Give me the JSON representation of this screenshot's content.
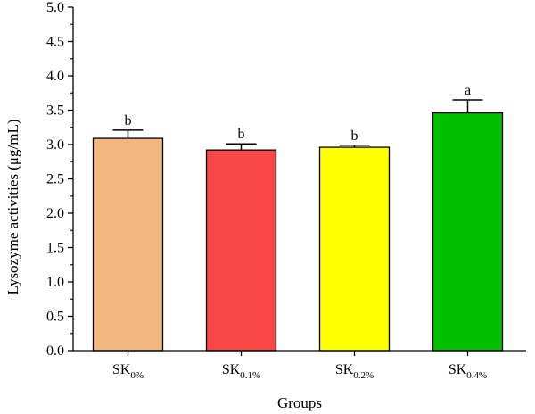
{
  "chart_data": {
    "type": "bar",
    "categories": [
      "SK0%",
      "SK0.1%",
      "SK0.2%",
      "SK0.4%"
    ],
    "category_labels": [
      {
        "base": "SK",
        "sub": "0%"
      },
      {
        "base": "SK",
        "sub": "0.1%"
      },
      {
        "base": "SK",
        "sub": "0.2%"
      },
      {
        "base": "SK",
        "sub": "0.4%"
      }
    ],
    "values": [
      3.09,
      2.92,
      2.96,
      3.46
    ],
    "error_upper": [
      0.12,
      0.09,
      0.03,
      0.19
    ],
    "significance_letters": [
      "b",
      "b",
      "b",
      "a"
    ],
    "bar_colors": [
      "#F0B87F",
      "#F84545",
      "#FFFF00",
      "#00C000"
    ],
    "xlabel": "Groups",
    "ylabel": "Lysozyme activities (μg/mL)",
    "ylim": [
      0.0,
      5.0
    ],
    "yticks": [
      "0.0",
      "0.5",
      "1.0",
      "1.5",
      "2.0",
      "2.5",
      "3.0",
      "3.5",
      "4.0",
      "4.5",
      "5.0"
    ],
    "grid": false,
    "legend": "none"
  }
}
